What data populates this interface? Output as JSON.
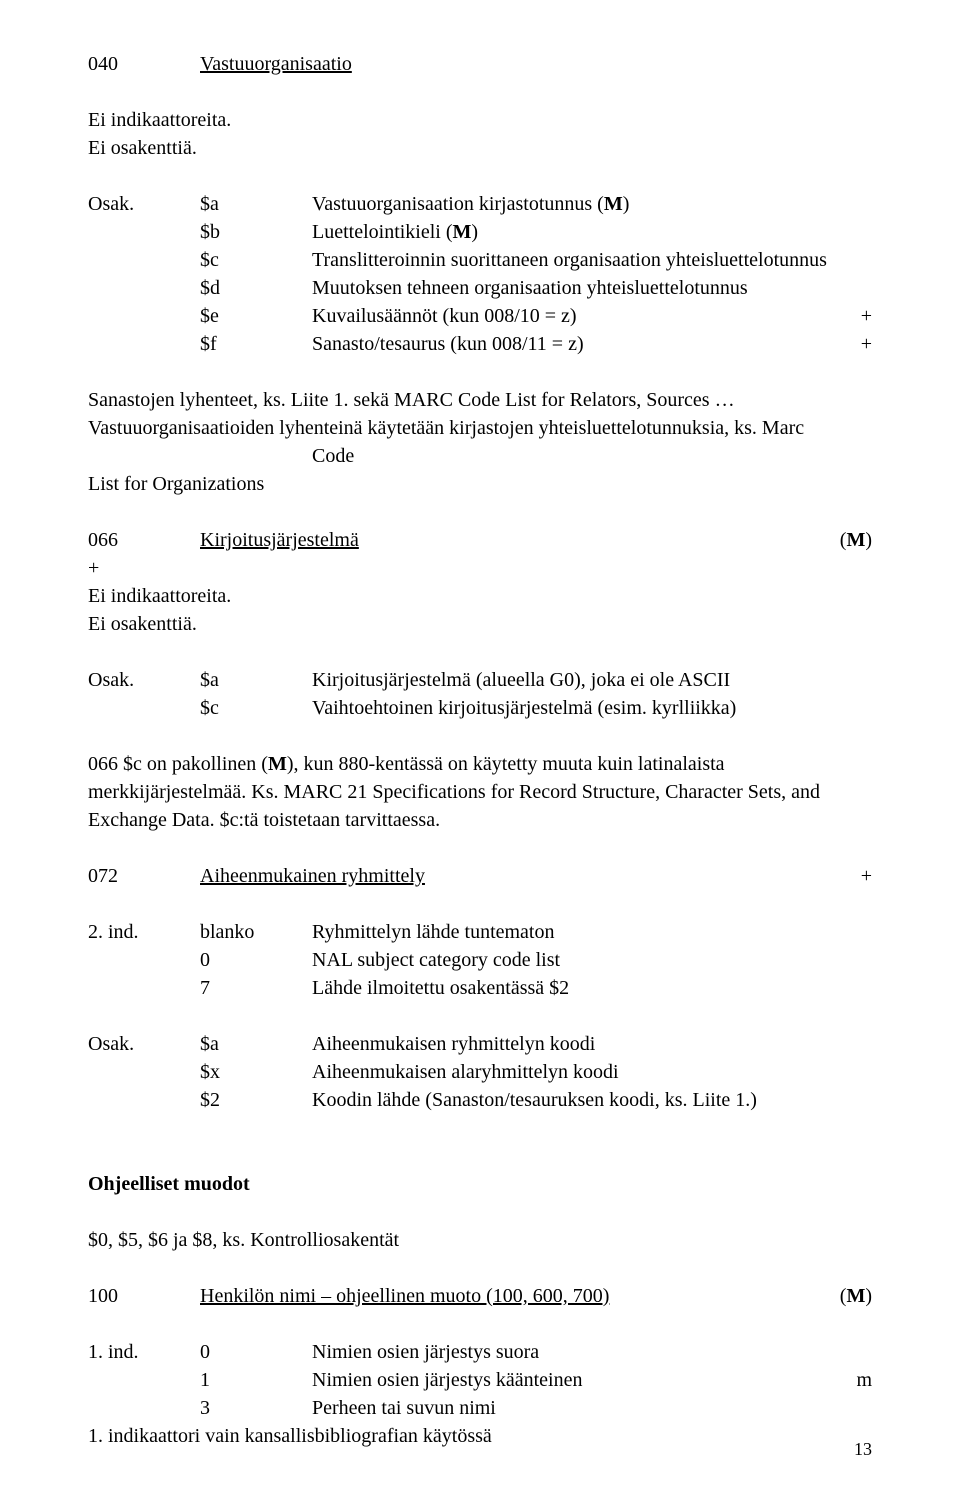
{
  "field040": {
    "tag": "040",
    "title": "Vastuuorganisaatio",
    "noInd": "Ei indikaattoreita.",
    "noSub": "Ei osakenttiä.",
    "osakLabel": "Osak.",
    "subs": {
      "a": {
        "code": "$a",
        "label": "Vastuuorganisaation kirjastotunnus (M)"
      },
      "b": {
        "code": "$b",
        "label": "Luettelointikieli (M)"
      },
      "c": {
        "code": "$c",
        "label": "Translitteroinnin suorittaneen  organisaation yhteisluettelotunnus"
      },
      "d": {
        "code": "$d",
        "label": "Muutoksen tehneen organisaation yhteisluettelotunnus"
      },
      "e": {
        "code": "$e",
        "label": "Kuvailusäännöt (kun 008/10 = z)",
        "plus": "+"
      },
      "f": {
        "code": "$f",
        "label": "Sanasto/tesaurus (kun 008/11 = z)",
        "plus": "+"
      }
    },
    "note1": "Sanastojen lyhenteet, ks. Liite 1. sekä MARC Code List for Relators, Sources … Vastuuorganisaatioiden lyhenteinä käytetään kirjastojen yhteisluettelotunnuksia, ks. Marc",
    "note2_indent": "Code",
    "note3": "List for Organizations"
  },
  "field066": {
    "tag": "066",
    "title": "Kirjoitusjärjestelmä",
    "m": "(M)",
    "plus": "+",
    "noInd": "Ei indikaattoreita.",
    "noSub": "Ei osakenttiä.",
    "osakLabel": "Osak.",
    "subs": {
      "a": {
        "code": "$a",
        "label": "Kirjoitusjärjestelmä (alueella G0), joka ei ole ASCII"
      },
      "c": {
        "code": "$c",
        "label": "Vaihtoehtoinen kirjoitusjärjestelmä (esim. kyrlliikka)"
      }
    },
    "note_p1": "066 $c on pakollinen (",
    "note_bold": "M",
    "note_p2": "), kun 880-kentässä on käytetty muuta kuin latinalaista merkkijärjestelmää. Ks. MARC 21 Specifications for Record Structure, Character Sets, and Exchange Data. $c:tä toistetaan tarvittaessa."
  },
  "field072": {
    "tag": "072",
    "title": "Aiheenmukainen ryhmittely",
    "plus": "+",
    "ind2label": "2. ind.",
    "ind2": {
      "blank": {
        "code": "blanko",
        "label": "Ryhmittelyn lähde tuntematon"
      },
      "zero": {
        "code": "0",
        "label": "NAL subject category code list"
      },
      "seven": {
        "code": "7",
        "label": "Lähde ilmoitettu osakentässä $2"
      }
    },
    "osakLabel": "Osak.",
    "subs": {
      "a": {
        "code": "$a",
        "label": "Aiheenmukaisen ryhmittelyn koodi"
      },
      "x": {
        "code": "$x",
        "label": "Aiheenmukaisen alaryhmittelyn koodi"
      },
      "two": {
        "code": "$2",
        "label": "Koodin lähde (Sanaston/tesauruksen koodi, ks. Liite 1.)"
      }
    }
  },
  "headingSection": {
    "title": "Ohjeelliset muodot",
    "note": "$0, $5, $6 ja $8, ks. Kontrolliosakentät"
  },
  "field100": {
    "tag": "100",
    "title": "Henkilön nimi – ohjeellinen muoto (100, 600, 700)",
    "m": "(M)",
    "ind1label": "1. ind.",
    "ind1": {
      "zero": {
        "code": "0",
        "label": "Nimien osien järjestys suora"
      },
      "one": {
        "code": "1",
        "label": "Nimien osien järjestys käänteinen",
        "right": "m"
      },
      "three": {
        "code": "3",
        "label": "Perheen tai suvun nimi"
      }
    },
    "note": "1. indikaattori vain kansallisbibliografian käytössä"
  },
  "pageNum": "13"
}
